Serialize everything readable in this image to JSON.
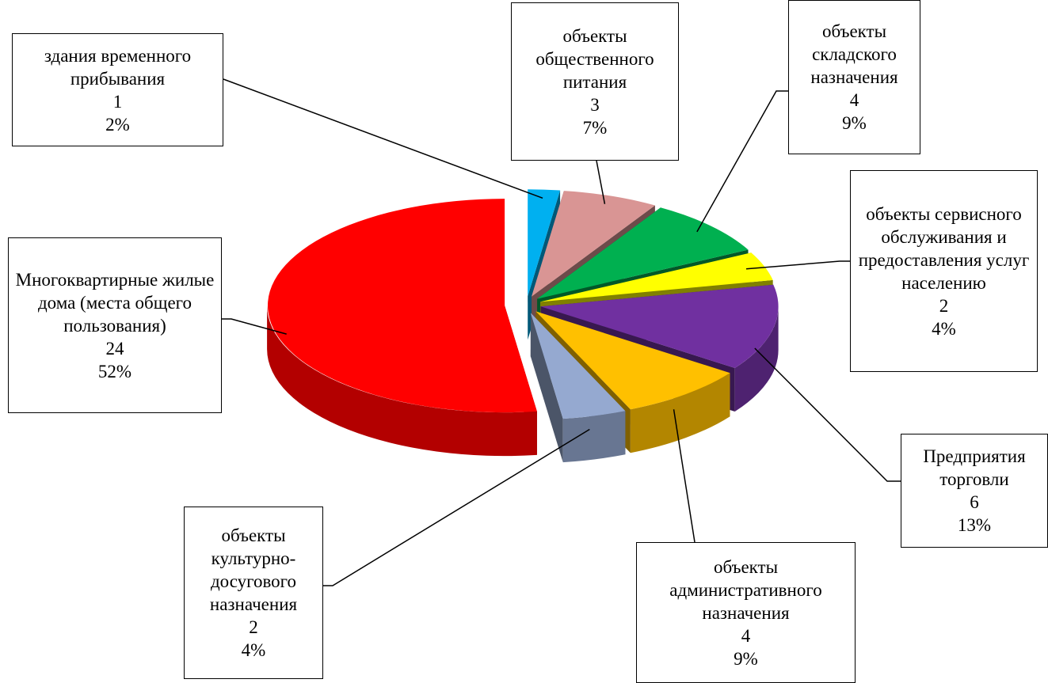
{
  "chart_data": {
    "type": "pie3d",
    "categories": [
      "здания временного прибывания",
      "объекты общественного питания",
      "объекты складского назначения",
      "объекты сервисного обслуживания и предоставления услуг населению",
      "Предприятия торговли",
      "объекты административного назначения",
      "объекты культурно-досугового назначения",
      "Многоквартирные жилые дома (места общего пользования)"
    ],
    "values": [
      1,
      3,
      4,
      2,
      6,
      4,
      2,
      24
    ],
    "percent_labels": [
      "2%",
      "7%",
      "9%",
      "4%",
      "13%",
      "9%",
      "4%",
      "52%"
    ],
    "colors": [
      "#00b0f0",
      "#d99594",
      "#00b050",
      "#ffff00",
      "#7030a0",
      "#ffc000",
      "#95a9d0",
      "#ff0000"
    ]
  }
}
